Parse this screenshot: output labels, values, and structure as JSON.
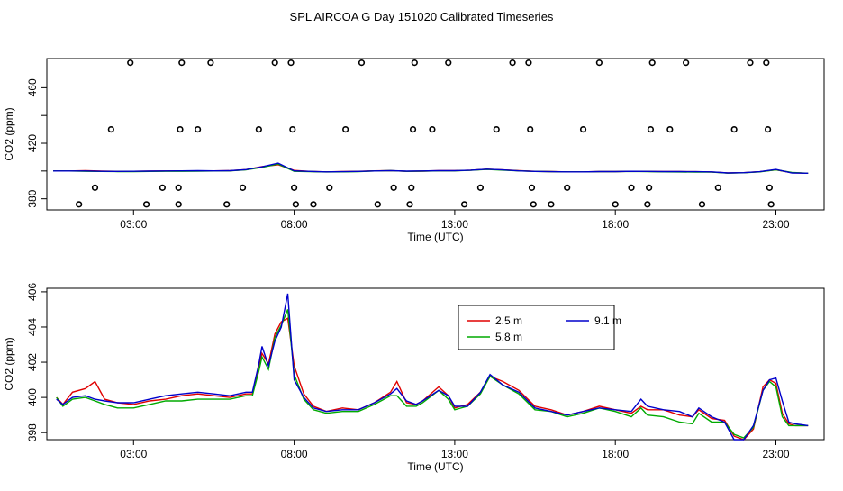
{
  "title": "SPL AIRCOA G  Day 151020  Calibrated Timeseries",
  "chart_data": [
    {
      "type": "scatter",
      "xlabel": "Time (UTC)",
      "ylabel": "CO2 (ppm)",
      "xlim": [
        0.3,
        24.5
      ],
      "ylim": [
        372,
        481
      ],
      "xticks": [
        3,
        8,
        13,
        18,
        23
      ],
      "xtick_labels": [
        "03:00",
        "08:00",
        "13:00",
        "18:00",
        "23:00"
      ],
      "yticks": [
        380,
        420,
        460
      ],
      "yticks_minor": [
        400,
        440
      ],
      "points": [
        {
          "x": 1.3,
          "y": 376
        },
        {
          "x": 1.8,
          "y": 388
        },
        {
          "x": 2.3,
          "y": 430
        },
        {
          "x": 2.9,
          "y": 478
        },
        {
          "x": 3.4,
          "y": 376
        },
        {
          "x": 3.9,
          "y": 388
        },
        {
          "x": 4.4,
          "y": 376
        },
        {
          "x": 4.4,
          "y": 388
        },
        {
          "x": 4.45,
          "y": 430
        },
        {
          "x": 4.5,
          "y": 478
        },
        {
          "x": 5.0,
          "y": 430
        },
        {
          "x": 5.4,
          "y": 478
        },
        {
          "x": 5.9,
          "y": 376
        },
        {
          "x": 6.4,
          "y": 388
        },
        {
          "x": 6.9,
          "y": 430
        },
        {
          "x": 7.4,
          "y": 478
        },
        {
          "x": 7.9,
          "y": 478
        },
        {
          "x": 7.95,
          "y": 430
        },
        {
          "x": 8.0,
          "y": 388
        },
        {
          "x": 8.05,
          "y": 376
        },
        {
          "x": 8.6,
          "y": 376
        },
        {
          "x": 9.1,
          "y": 388
        },
        {
          "x": 9.6,
          "y": 430
        },
        {
          "x": 10.1,
          "y": 478
        },
        {
          "x": 10.6,
          "y": 376
        },
        {
          "x": 11.1,
          "y": 388
        },
        {
          "x": 11.6,
          "y": 376
        },
        {
          "x": 11.65,
          "y": 388
        },
        {
          "x": 11.7,
          "y": 430
        },
        {
          "x": 11.75,
          "y": 478
        },
        {
          "x": 12.3,
          "y": 430
        },
        {
          "x": 12.8,
          "y": 478
        },
        {
          "x": 13.3,
          "y": 376
        },
        {
          "x": 13.8,
          "y": 388
        },
        {
          "x": 14.3,
          "y": 430
        },
        {
          "x": 14.8,
          "y": 478
        },
        {
          "x": 15.3,
          "y": 478
        },
        {
          "x": 15.35,
          "y": 430
        },
        {
          "x": 15.4,
          "y": 388
        },
        {
          "x": 15.45,
          "y": 376
        },
        {
          "x": 16.0,
          "y": 376
        },
        {
          "x": 16.5,
          "y": 388
        },
        {
          "x": 17.0,
          "y": 430
        },
        {
          "x": 17.5,
          "y": 478
        },
        {
          "x": 18.0,
          "y": 376
        },
        {
          "x": 18.5,
          "y": 388
        },
        {
          "x": 19.0,
          "y": 376
        },
        {
          "x": 19.05,
          "y": 388
        },
        {
          "x": 19.1,
          "y": 430
        },
        {
          "x": 19.15,
          "y": 478
        },
        {
          "x": 19.7,
          "y": 430
        },
        {
          "x": 20.2,
          "y": 478
        },
        {
          "x": 20.7,
          "y": 376
        },
        {
          "x": 21.2,
          "y": 388
        },
        {
          "x": 21.7,
          "y": 430
        },
        {
          "x": 22.2,
          "y": 478
        },
        {
          "x": 22.7,
          "y": 478
        },
        {
          "x": 22.75,
          "y": 430
        },
        {
          "x": 22.8,
          "y": 388
        },
        {
          "x": 22.85,
          "y": 376
        }
      ],
      "series": [
        {
          "name": "2.5 m",
          "color": "#e00000",
          "x": [
            0.5,
            1,
            1.5,
            2,
            2.5,
            3,
            3.5,
            4,
            4.5,
            5,
            5.5,
            6,
            6.5,
            7,
            7.5,
            8,
            8.5,
            9,
            9.5,
            10,
            10.5,
            11,
            11.5,
            12,
            12.5,
            13,
            13.5,
            14,
            14.5,
            15,
            15.5,
            16,
            16.5,
            17,
            17.5,
            18,
            18.5,
            19,
            19.5,
            20,
            20.5,
            21,
            21.5,
            22,
            22.5,
            23,
            23.5,
            24
          ],
          "values": [
            400,
            400,
            400.3,
            399.9,
            399.7,
            399.8,
            399.9,
            400,
            400.1,
            400.1,
            400.1,
            400.2,
            401,
            403.2,
            404.5,
            400.4,
            399.7,
            399.4,
            399.6,
            399.8,
            400.1,
            400.3,
            399.8,
            399.9,
            400.2,
            400.2,
            400.6,
            401.3,
            400.8,
            400.2,
            399.8,
            399.6,
            399.4,
            399.4,
            399.6,
            399.6,
            399.8,
            399.7,
            399.6,
            399.6,
            399.5,
            399.3,
            398.6,
            398.8,
            399.5,
            400.8,
            398.7,
            398.4
          ]
        },
        {
          "name": "5.8 m",
          "color": "#00aa00",
          "x": [
            0.5,
            1,
            1.5,
            2,
            2.5,
            3,
            3.5,
            4,
            4.5,
            5,
            5.5,
            6,
            6.5,
            7,
            7.5,
            8,
            8.5,
            9,
            9.5,
            10,
            10.5,
            11,
            11.5,
            12,
            12.5,
            13,
            13.5,
            14,
            14.5,
            15,
            15.5,
            16,
            16.5,
            17,
            17.5,
            18,
            18.5,
            19,
            19.5,
            20,
            20.5,
            21,
            21.5,
            22,
            22.5,
            23,
            23.5,
            24
          ],
          "values": [
            400,
            400,
            399.8,
            399.7,
            399.6,
            399.6,
            399.7,
            399.8,
            399.8,
            399.9,
            400,
            400.1,
            400.9,
            402.6,
            405,
            399.8,
            399.6,
            399.3,
            399.4,
            399.6,
            400,
            400.3,
            399.8,
            399.9,
            400.1,
            400.1,
            400.5,
            401.2,
            400.6,
            400.1,
            399.7,
            399.5,
            399.4,
            399.4,
            399.5,
            399.5,
            399.7,
            399.6,
            399.4,
            399.3,
            399.2,
            399.2,
            398.5,
            398.7,
            399.4,
            400.9,
            398.9,
            398.4
          ]
        },
        {
          "name": "9.1 m",
          "color": "#0000cc",
          "x": [
            0.5,
            1,
            1.5,
            2,
            2.5,
            3,
            3.5,
            4,
            4.5,
            5,
            5.5,
            6,
            6.5,
            7,
            7.5,
            8,
            8.5,
            9,
            9.5,
            10,
            10.5,
            11,
            11.5,
            12,
            12.5,
            13,
            13.5,
            14,
            14.5,
            15,
            15.5,
            16,
            16.5,
            17,
            17.5,
            18,
            18.5,
            19,
            19.5,
            20,
            20.5,
            21,
            21.5,
            22,
            22.5,
            23,
            23.5,
            24
          ],
          "values": [
            400,
            400,
            400,
            399.8,
            399.7,
            399.8,
            399.9,
            400,
            400.1,
            400.2,
            400.1,
            400.2,
            401,
            403,
            405.7,
            400.1,
            399.7,
            399.4,
            399.5,
            399.7,
            400,
            400.3,
            399.9,
            400,
            400.2,
            400.2,
            400.6,
            401.3,
            400.8,
            400.1,
            399.7,
            399.5,
            399.4,
            399.4,
            399.6,
            399.6,
            399.8,
            399.7,
            399.6,
            399.6,
            399.5,
            399.4,
            398.6,
            398.8,
            399.5,
            401.1,
            398.6,
            398.4
          ]
        }
      ]
    },
    {
      "type": "line",
      "xlabel": "Time (UTC)",
      "ylabel": "CO2 (ppm)",
      "xlim": [
        0.3,
        24.5
      ],
      "ylim": [
        397.6,
        406.2
      ],
      "xticks": [
        3,
        8,
        13,
        18,
        23
      ],
      "xtick_labels": [
        "03:00",
        "08:00",
        "13:00",
        "18:00",
        "23:00"
      ],
      "yticks": [
        398,
        400,
        402,
        404,
        406
      ],
      "legend": [
        {
          "label": "2.5 m",
          "color": "#e00000"
        },
        {
          "label": "5.8 m",
          "color": "#00aa00"
        },
        {
          "label": "9.1 m",
          "color": "#0000cc"
        }
      ],
      "series": [
        {
          "name": "2.5 m",
          "color": "#e00000",
          "x": [
            0.6,
            0.8,
            1.1,
            1.5,
            1.8,
            2.1,
            2.5,
            3.0,
            3.5,
            4.0,
            4.5,
            5.0,
            5.5,
            6.0,
            6.5,
            6.7,
            6.9,
            7.0,
            7.2,
            7.4,
            7.6,
            7.8,
            8.0,
            8.3,
            8.6,
            9.0,
            9.5,
            10.0,
            10.5,
            11.0,
            11.2,
            11.5,
            11.8,
            12.0,
            12.5,
            12.8,
            13.0,
            13.4,
            13.8,
            14.1,
            14.5,
            15.0,
            15.5,
            16.0,
            16.5,
            17.0,
            17.5,
            18.0,
            18.5,
            18.8,
            19.0,
            19.5,
            20.0,
            20.4,
            20.6,
            21.0,
            21.4,
            21.7,
            22.0,
            22.3,
            22.6,
            22.8,
            23.0,
            23.2,
            23.4,
            23.6,
            24.0
          ],
          "values": [
            400,
            399.6,
            400.3,
            400.5,
            400.9,
            399.9,
            399.7,
            399.6,
            399.8,
            399.9,
            400.1,
            400.2,
            400.1,
            400.0,
            400.2,
            400.2,
            401.8,
            402.5,
            401.9,
            403.6,
            404.3,
            404.5,
            401.8,
            400.2,
            399.5,
            399.2,
            399.4,
            399.3,
            399.7,
            400.3,
            400.9,
            399.7,
            399.6,
            399.8,
            400.6,
            400.1,
            399.4,
            399.6,
            400.3,
            401.2,
            400.9,
            400.4,
            399.5,
            399.3,
            399.0,
            399.2,
            399.5,
            399.3,
            399.1,
            399.5,
            399.3,
            399.3,
            399.0,
            398.9,
            399.3,
            398.8,
            398.7,
            397.8,
            397.6,
            398.2,
            400.6,
            401.0,
            400.8,
            399.1,
            398.5,
            398.4,
            398.4
          ]
        },
        {
          "name": "5.8 m",
          "color": "#00aa00",
          "x": [
            0.6,
            0.8,
            1.1,
            1.5,
            1.8,
            2.1,
            2.5,
            3.0,
            3.5,
            4.0,
            4.5,
            5.0,
            5.5,
            6.0,
            6.5,
            6.7,
            6.9,
            7.0,
            7.2,
            7.4,
            7.6,
            7.8,
            8.0,
            8.3,
            8.6,
            9.0,
            9.5,
            10.0,
            10.5,
            11.0,
            11.2,
            11.5,
            11.8,
            12.0,
            12.5,
            12.8,
            13.0,
            13.4,
            13.8,
            14.1,
            14.5,
            15.0,
            15.5,
            16.0,
            16.5,
            17.0,
            17.5,
            18.0,
            18.5,
            18.8,
            19.0,
            19.5,
            20.0,
            20.4,
            20.6,
            21.0,
            21.4,
            21.7,
            22.0,
            22.3,
            22.6,
            22.8,
            23.0,
            23.2,
            23.4,
            23.6,
            24.0
          ],
          "values": [
            400,
            399.5,
            399.9,
            400.0,
            399.8,
            399.6,
            399.4,
            399.4,
            399.6,
            399.8,
            399.8,
            399.9,
            399.9,
            399.9,
            400.1,
            400.1,
            401.5,
            402.3,
            401.6,
            403.4,
            404.1,
            405.0,
            401.3,
            399.9,
            399.3,
            399.1,
            399.2,
            399.2,
            399.6,
            400.1,
            400.1,
            399.5,
            399.5,
            399.7,
            400.4,
            399.9,
            399.3,
            399.5,
            400.2,
            401.2,
            400.7,
            400.2,
            399.3,
            399.2,
            398.9,
            399.1,
            399.4,
            399.2,
            398.9,
            399.4,
            399.0,
            398.9,
            398.6,
            398.5,
            399.1,
            398.6,
            398.6,
            397.9,
            397.7,
            398.3,
            400.4,
            400.9,
            400.6,
            398.9,
            398.4,
            398.4,
            398.4
          ]
        },
        {
          "name": "9.1 m",
          "color": "#0000cc",
          "x": [
            0.6,
            0.8,
            1.1,
            1.5,
            1.8,
            2.1,
            2.5,
            3.0,
            3.5,
            4.0,
            4.5,
            5.0,
            5.5,
            6.0,
            6.5,
            6.7,
            6.9,
            7.0,
            7.2,
            7.4,
            7.6,
            7.8,
            8.0,
            8.3,
            8.6,
            9.0,
            9.5,
            10.0,
            10.5,
            11.0,
            11.2,
            11.5,
            11.8,
            12.0,
            12.5,
            12.8,
            13.0,
            13.4,
            13.8,
            14.1,
            14.5,
            15.0,
            15.5,
            16.0,
            16.5,
            17.0,
            17.5,
            18.0,
            18.5,
            18.8,
            19.0,
            19.5,
            20.0,
            20.4,
            20.6,
            21.0,
            21.4,
            21.7,
            22.0,
            22.3,
            22.6,
            22.8,
            23.0,
            23.2,
            23.4,
            23.6,
            24.0
          ],
          "values": [
            399.9,
            399.6,
            400.0,
            400.1,
            399.9,
            399.8,
            399.7,
            399.7,
            399.9,
            400.1,
            400.2,
            400.3,
            400.2,
            400.1,
            400.3,
            400.3,
            401.9,
            402.9,
            401.8,
            403.2,
            404.0,
            405.9,
            401.0,
            400.0,
            399.4,
            399.2,
            399.3,
            399.3,
            399.7,
            400.2,
            400.5,
            399.8,
            399.6,
            399.8,
            400.4,
            400.1,
            399.5,
            399.5,
            400.3,
            401.3,
            400.7,
            400.3,
            399.4,
            399.2,
            399.0,
            399.2,
            399.4,
            399.3,
            399.2,
            399.9,
            399.5,
            399.3,
            399.2,
            398.9,
            399.4,
            398.9,
            398.6,
            397.6,
            397.6,
            398.4,
            400.4,
            401.0,
            401.1,
            399.8,
            398.6,
            398.5,
            398.4
          ]
        }
      ]
    }
  ]
}
